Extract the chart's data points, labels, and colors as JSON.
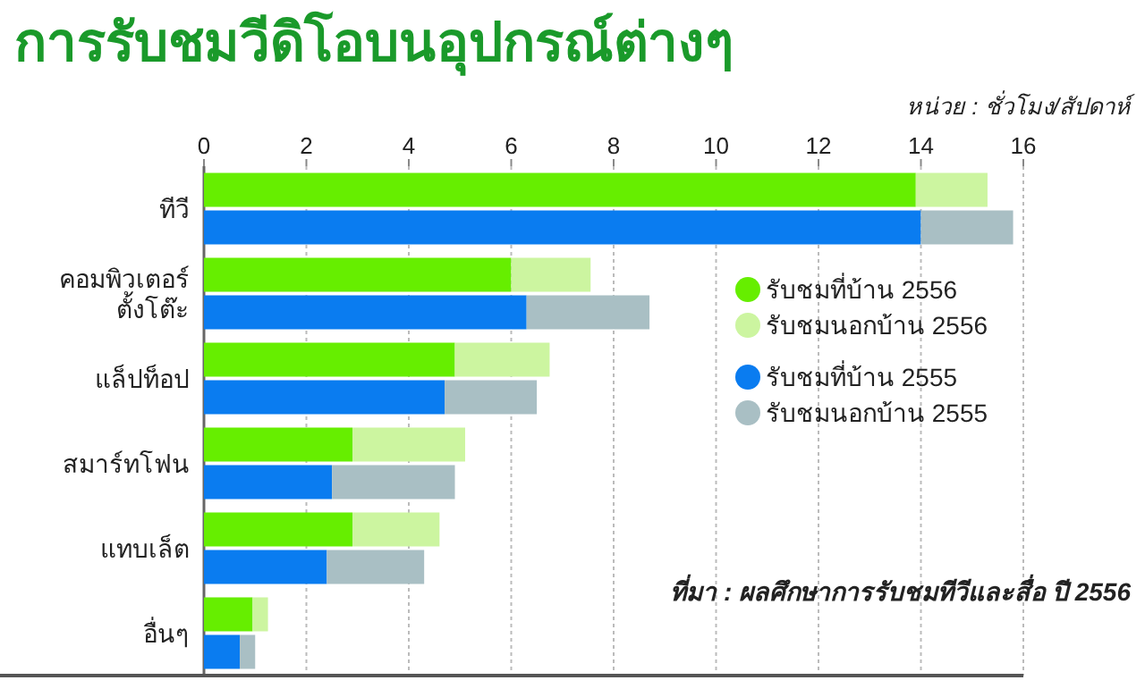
{
  "chart_data": [
    {
      "type": "bar",
      "orientation": "horizontal",
      "stacked": true,
      "title": "การรับชมวีดิโอบนอุปกรณ์ต่างๆ",
      "subtitle": "หน่วย : ชั่วโมง/สัปดาห์",
      "categories": [
        "ทีวี",
        "คอมพิวเตอร์\nตั้งโต๊ะ",
        "แล็ปท็อป",
        "สมาร์ทโฟน",
        "แทบเล็ต",
        "อื่นๆ"
      ],
      "series": [
        {
          "name": "รับชมที่บ้าน 2556",
          "color": "#66ee00",
          "values": [
            13.9,
            6.0,
            4.9,
            2.9,
            2.9,
            0.95
          ]
        },
        {
          "name": "รับชมนอกบ้าน 2556",
          "color": "#ccf5a0",
          "values": [
            1.4,
            1.55,
            1.85,
            2.2,
            1.7,
            0.3
          ]
        }
      ],
      "xlim": [
        0,
        16
      ],
      "xticks": [
        0,
        2,
        4,
        6,
        8,
        10,
        12,
        14,
        16
      ],
      "grid": "x",
      "legend": "right",
      "annotations": [
        "ที่มา : ผลศึกษาการรับชมทีวีและสื่อ ปี 2556"
      ]
    },
    {
      "type": "bar",
      "orientation": "horizontal",
      "stacked": true,
      "categories": [
        "ทีวี",
        "คอมพิวเตอร์\nตั้งโต๊ะ",
        "แล็ปท็อป",
        "สมาร์ทโฟน",
        "แทบเล็ต",
        "อื่นๆ"
      ],
      "series": [
        {
          "name": "รับชมที่บ้าน 2555",
          "color": "#0a7cf0",
          "values": [
            14.0,
            6.3,
            4.7,
            2.5,
            2.4,
            0.7
          ]
        },
        {
          "name": "รับชมนอกบ้าน 2555",
          "color": "#a9bfc4",
          "values": [
            1.8,
            2.4,
            1.8,
            2.4,
            1.9,
            0.3
          ]
        }
      ],
      "xlim": [
        0,
        16
      ],
      "xticks": [
        0,
        2,
        4,
        6,
        8,
        10,
        12,
        14,
        16
      ],
      "tick_labels": false,
      "legend": "right"
    }
  ]
}
